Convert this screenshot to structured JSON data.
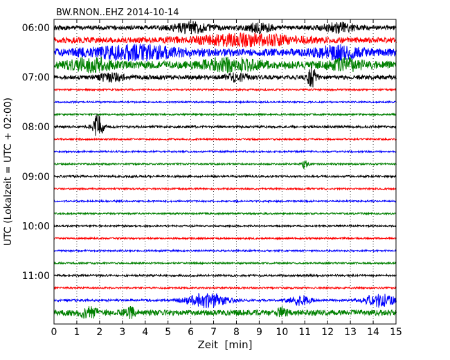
{
  "chart_data": {
    "type": "line",
    "subtype": "seismic-dayplot",
    "title": "BW.RNON..EHZ 2014-10-14",
    "xlabel": "Zeit  [min]",
    "ylabel": "UTC (Lokalzeit = UTC + 02:00)",
    "xlim": [
      0,
      15
    ],
    "xticks": [
      0,
      1,
      2,
      3,
      4,
      5,
      6,
      7,
      8,
      9,
      10,
      11,
      12,
      13,
      14,
      15
    ],
    "vertical_grid": "dotted",
    "trace_interval_minutes": 15,
    "trace_start": "06:00",
    "trace_count": 24,
    "ytick_labels": [
      "06:00",
      "07:00",
      "08:00",
      "09:00",
      "10:00",
      "11:00"
    ],
    "ytick_trace_index": [
      0,
      4,
      8,
      12,
      16,
      20
    ],
    "colors_cycle": [
      "#000000",
      "#ff0000",
      "#0000ff",
      "#008000"
    ],
    "noise_levels": [
      3.0,
      4.0,
      5.5,
      5.5,
      3.0,
      1.2,
      1.2,
      1.2,
      1.6,
      1.2,
      1.2,
      1.2,
      1.4,
      1.2,
      1.2,
      1.2,
      1.2,
      1.2,
      1.2,
      1.2,
      1.4,
      1.2,
      1.6,
      4.0
    ],
    "events": [
      {
        "trace": 0,
        "center_min": 6.0,
        "duration_min": 1.8,
        "amplitude": 7
      },
      {
        "trace": 0,
        "center_min": 9.0,
        "duration_min": 1.2,
        "amplitude": 6
      },
      {
        "trace": 0,
        "center_min": 12.5,
        "duration_min": 1.6,
        "amplitude": 6
      },
      {
        "trace": 1,
        "center_min": 8.5,
        "duration_min": 5.0,
        "amplitude": 7
      },
      {
        "trace": 2,
        "center_min": 3.5,
        "duration_min": 4.0,
        "amplitude": 8
      },
      {
        "trace": 2,
        "center_min": 12.5,
        "duration_min": 2.0,
        "amplitude": 7
      },
      {
        "trace": 3,
        "center_min": 1.6,
        "duration_min": 2.0,
        "amplitude": 7
      },
      {
        "trace": 3,
        "center_min": 7.8,
        "duration_min": 2.5,
        "amplitude": 7
      },
      {
        "trace": 3,
        "center_min": 12.8,
        "duration_min": 1.5,
        "amplitude": 6
      },
      {
        "trace": 4,
        "center_min": 11.3,
        "duration_min": 0.4,
        "amplitude": 15
      },
      {
        "trace": 4,
        "center_min": 2.5,
        "duration_min": 1.2,
        "amplitude": 5
      },
      {
        "trace": 4,
        "center_min": 8.0,
        "duration_min": 1.0,
        "amplitude": 5
      },
      {
        "trace": 8,
        "center_min": 1.9,
        "duration_min": 0.5,
        "amplitude": 18
      },
      {
        "trace": 11,
        "center_min": 11.0,
        "duration_min": 0.3,
        "amplitude": 7
      },
      {
        "trace": 22,
        "center_min": 6.7,
        "duration_min": 2.0,
        "amplitude": 10
      },
      {
        "trace": 22,
        "center_min": 10.8,
        "duration_min": 1.0,
        "amplitude": 7
      },
      {
        "trace": 22,
        "center_min": 14.3,
        "duration_min": 1.4,
        "amplitude": 10
      },
      {
        "trace": 23,
        "center_min": 1.5,
        "duration_min": 1.0,
        "amplitude": 6
      },
      {
        "trace": 23,
        "center_min": 3.3,
        "duration_min": 0.6,
        "amplitude": 6
      },
      {
        "trace": 23,
        "center_min": 10.0,
        "duration_min": 0.4,
        "amplitude": 7
      }
    ]
  }
}
